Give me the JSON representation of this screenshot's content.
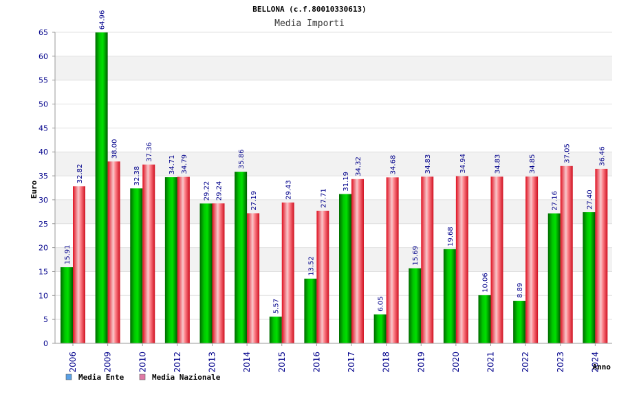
{
  "chart_data": {
    "type": "bar",
    "title": "BELLONA (c.f.80010330613)",
    "subtitle": "Media Importi",
    "xlabel": "Anno",
    "ylabel": "Euro",
    "ylim": [
      0,
      65
    ],
    "yticks": [
      0,
      5,
      10,
      15,
      20,
      25,
      30,
      35,
      40,
      45,
      50,
      55,
      60,
      65
    ],
    "categories": [
      "2006",
      "2009",
      "2010",
      "2012",
      "2013",
      "2014",
      "2015",
      "2016",
      "2017",
      "2018",
      "2019",
      "2020",
      "2021",
      "2022",
      "2023",
      "2024"
    ],
    "series": [
      {
        "name": "Media Ente",
        "color": "#00b400",
        "legend_color": "#5aa0e6",
        "values": [
          15.91,
          64.96,
          32.38,
          34.71,
          29.22,
          35.86,
          5.57,
          13.52,
          31.19,
          6.05,
          15.69,
          19.68,
          10.06,
          8.89,
          27.16,
          27.4
        ],
        "labels": [
          "15.91",
          "64.96",
          "32.38",
          "34.71",
          "29.22",
          "35.86",
          "5.57",
          "13.52",
          "31.19",
          "6.05",
          "15.69",
          "19.68",
          "10.06",
          "8.89",
          "27.16",
          "27.40"
        ]
      },
      {
        "name": "Media Nazionale",
        "color": "#e6202a",
        "legend_color": "#e07aa6",
        "values": [
          32.82,
          38.0,
          37.36,
          34.79,
          29.24,
          27.19,
          29.43,
          27.71,
          34.32,
          34.68,
          34.83,
          34.94,
          34.83,
          34.85,
          37.05,
          36.46
        ],
        "labels": [
          "32.82",
          "38.00",
          "37.36",
          "34.79",
          "29.24",
          "27.19",
          "29.43",
          "27.71",
          "34.32",
          "34.68",
          "34.83",
          "34.94",
          "34.83",
          "34.85",
          "37.05",
          "36.46"
        ]
      }
    ],
    "grid": true,
    "legend_position": "bottom-left"
  }
}
